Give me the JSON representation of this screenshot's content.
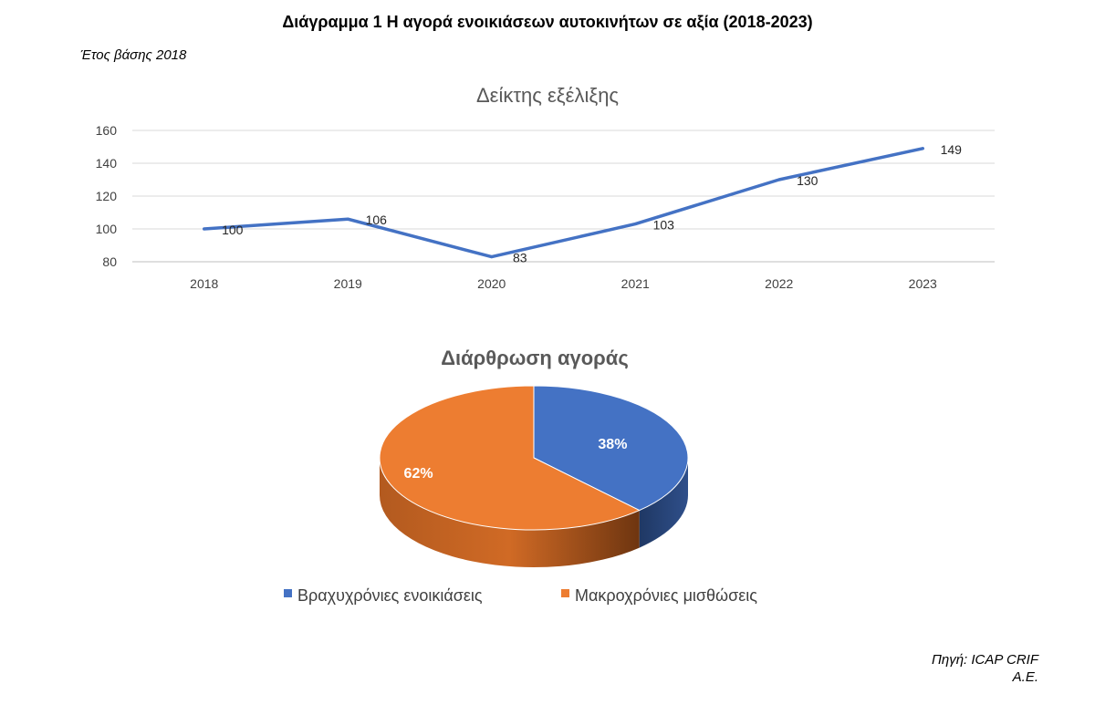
{
  "title": "Διάγραμμα 1 Η αγορά ενοικιάσεων αυτοκινήτων σε αξία (2018-2023)",
  "base_year_note": "Έτος βάσης 2018",
  "source_line1": "Πηγή: ICAP CRIF",
  "source_line2": "Α.Ε.",
  "chart_data": [
    {
      "type": "line",
      "title": "Δείκτης εξέλιξης",
      "categories": [
        "2018",
        "2019",
        "2020",
        "2021",
        "2022",
        "2023"
      ],
      "series": [
        {
          "values": [
            100,
            106,
            83,
            103,
            130,
            149
          ],
          "color": "#4472C4"
        }
      ],
      "ylim": [
        80,
        160
      ],
      "yticks": [
        80,
        100,
        120,
        140,
        160
      ],
      "grid": true
    },
    {
      "type": "pie",
      "title": "Διάρθρωση αγοράς",
      "labels": [
        "Βραχυχρόνιες ενοικιάσεις",
        "Μακροχρόνιες μισθώσεις"
      ],
      "values": [
        38,
        62
      ],
      "data_labels": [
        "38%",
        "62%"
      ],
      "colors": [
        "#4472C4",
        "#ED7D31"
      ],
      "legend_position": "bottom",
      "style": "3d"
    }
  ]
}
